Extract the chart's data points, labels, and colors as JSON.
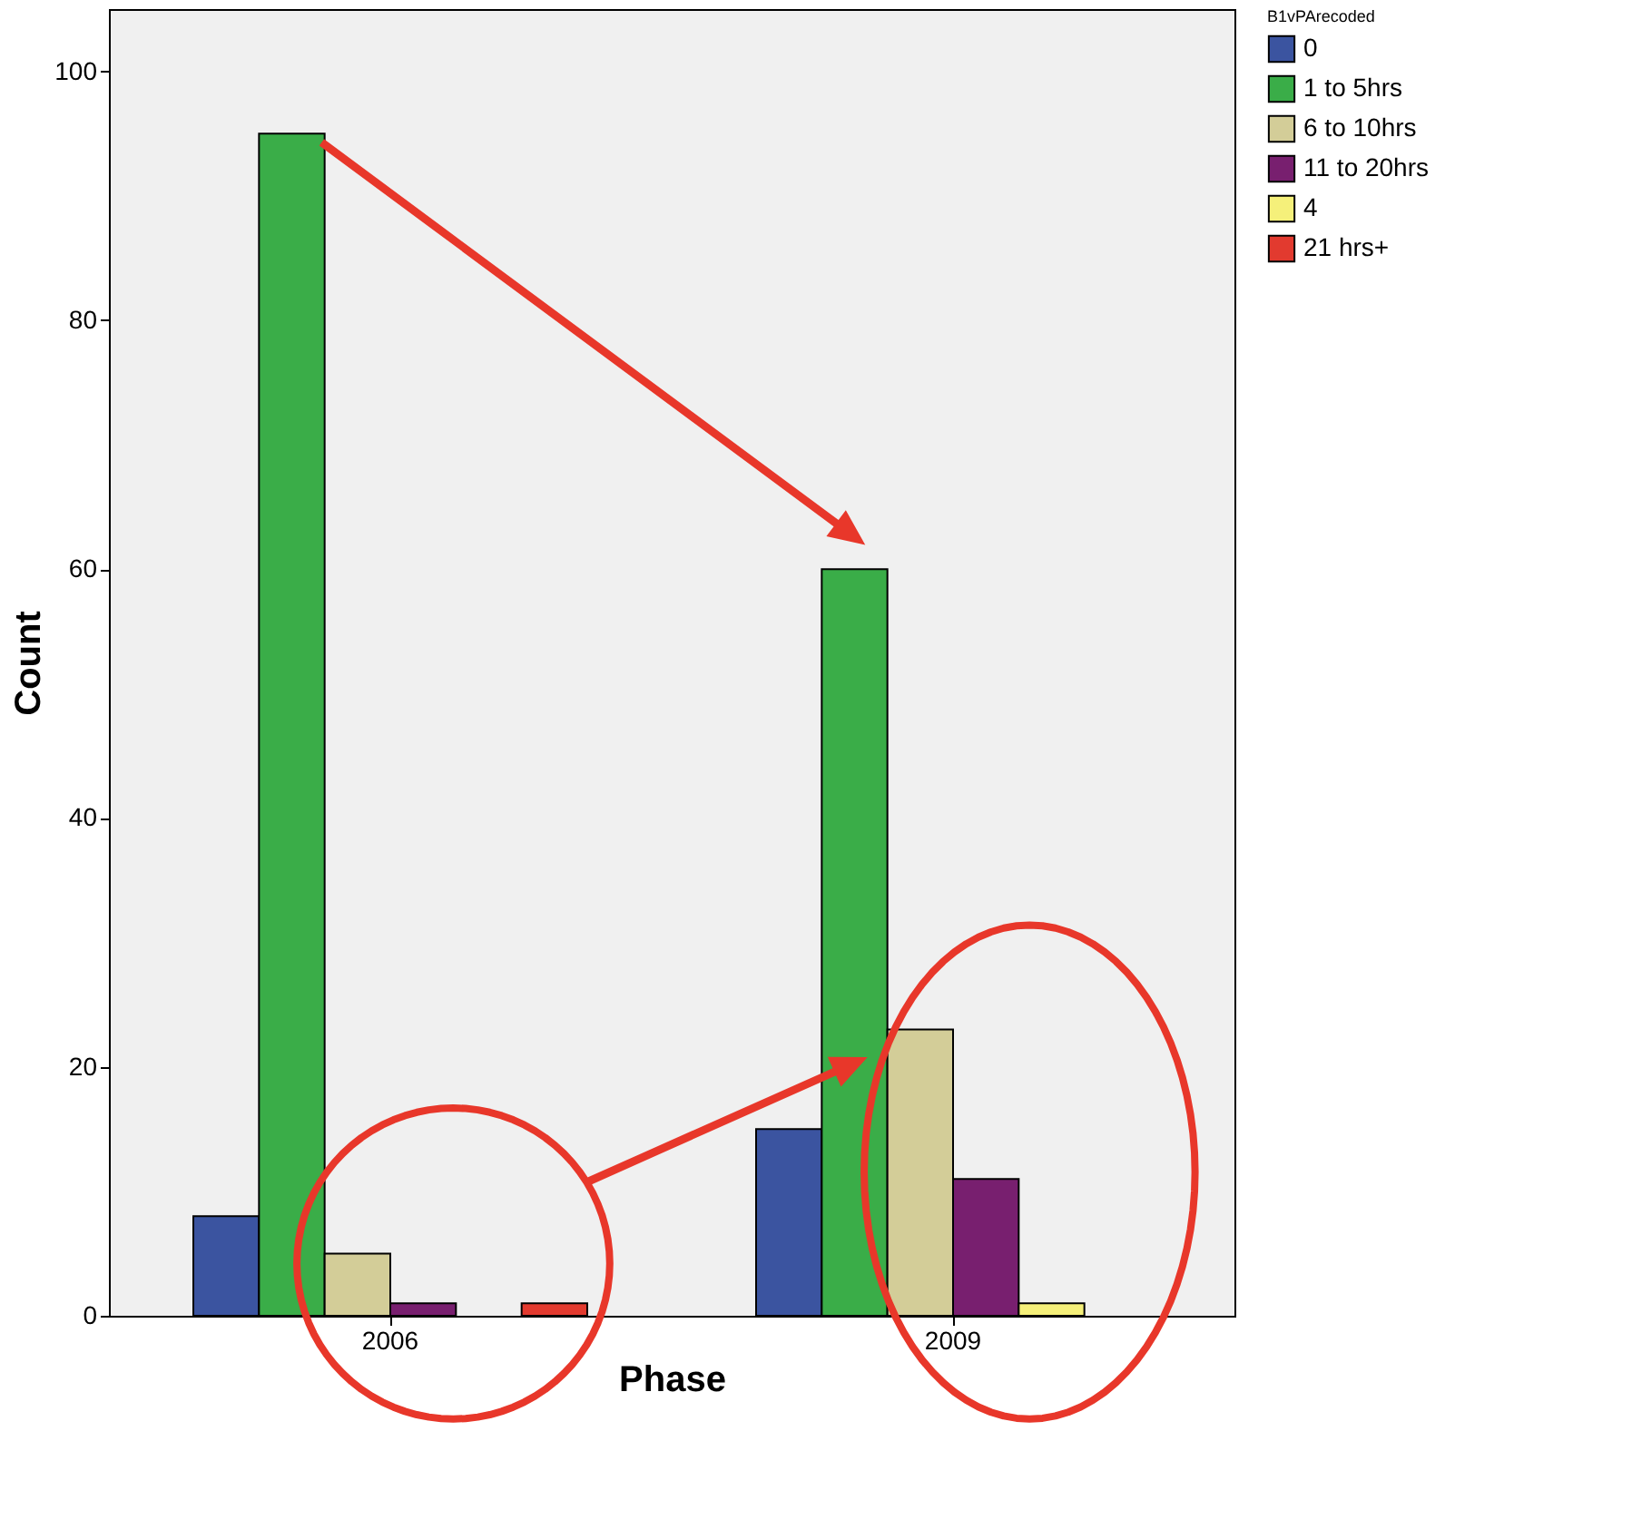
{
  "chart_data": {
    "type": "bar",
    "xlabel": "Phase",
    "ylabel": "Count",
    "legend_title": "B1vPArecoded",
    "legend": "top right",
    "categories": [
      "2006",
      "2009"
    ],
    "series": [
      {
        "name": "0",
        "color": "#3b54a0",
        "values": [
          8,
          15
        ]
      },
      {
        "name": "1 to 5hrs",
        "color": "#3aad48",
        "values": [
          95,
          60
        ]
      },
      {
        "name": "6 to 10hrs",
        "color": "#d3cd98",
        "values": [
          5,
          23
        ]
      },
      {
        "name": "11 to 20hrs",
        "color": "#781f6f",
        "values": [
          1,
          11
        ]
      },
      {
        "name": "4",
        "color": "#f5f07a",
        "values": [
          null,
          1
        ]
      },
      {
        "name": "21 hrs+",
        "color": "#e23a2f",
        "values": [
          1,
          null
        ]
      }
    ],
    "ylim": [
      0,
      105
    ],
    "yticks": [
      0,
      20,
      40,
      60,
      80,
      100
    ],
    "grid": false
  }
}
